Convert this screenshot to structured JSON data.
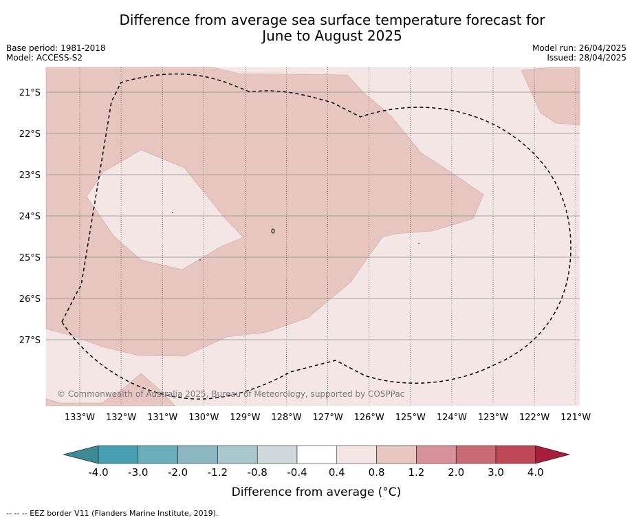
{
  "header": {
    "title_line1": "Difference from average sea surface temperature forecast for",
    "title_line2": "June to August 2025",
    "base_period": "Base period: 1981-2018",
    "model": "Model: ACCESS-S2",
    "model_run": "Model run: 26/04/2025",
    "issued": "Issued: 28/04/2025"
  },
  "map": {
    "lat_labels": [
      "21°S",
      "22°S",
      "23°S",
      "24°S",
      "25°S",
      "26°S",
      "27°S"
    ],
    "lon_labels": [
      "133°W",
      "132°W",
      "131°W",
      "130°W",
      "129°W",
      "128°W",
      "127°W",
      "126°W",
      "125°W",
      "124°W",
      "123°W",
      "122°W",
      "121°W"
    ],
    "copyright": "© Commonwealth of Australia 2025, Bureau of Meteorology, supported by COSPPac",
    "colors": {
      "band_0_4_to_0_8": "#f4e6e5",
      "band_0_8_to_1_2": "#e7c6c2",
      "eez_border": "#000000"
    }
  },
  "colorbar": {
    "label": "Difference from average (°C)",
    "ticks": [
      "-4.0",
      "-3.0",
      "-2.0",
      "-1.2",
      "-0.8",
      "-0.4",
      "0.4",
      "0.8",
      "1.2",
      "2.0",
      "3.0",
      "4.0"
    ],
    "colors": [
      "#3e8996",
      "#46a0b1",
      "#6aaebb",
      "#8db8c3",
      "#a9c7cc",
      "#cfd9dc",
      "#ffffff",
      "#f4e6e5",
      "#e7c6c2",
      "#d6919a",
      "#c96a74",
      "#bd4657",
      "#a91f3b"
    ]
  },
  "footnote": "--  --  -- EEZ border V11 (Flanders Marine Institute, 2019)."
}
